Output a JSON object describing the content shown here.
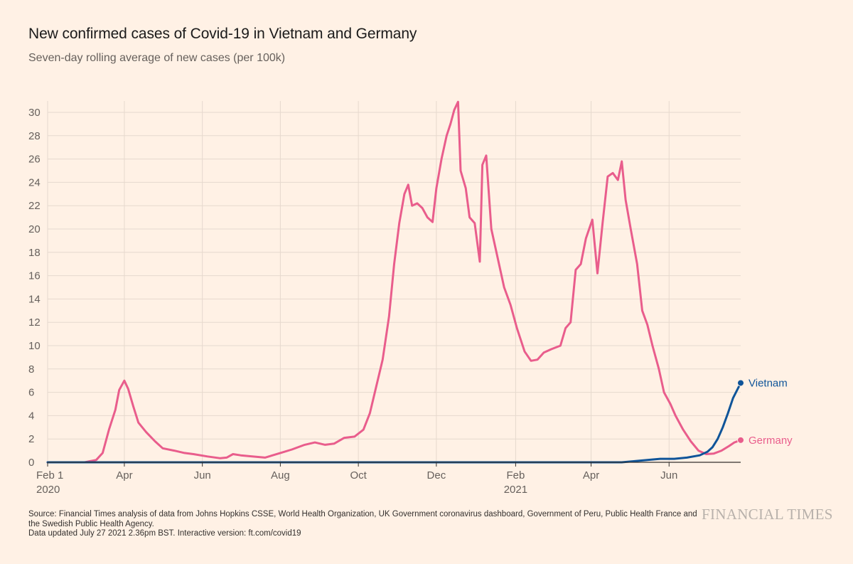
{
  "header": {
    "title": "New confirmed cases of Covid-19 in Vietnam and Germany",
    "subtitle": "Seven-day rolling average of new cases (per 100k)"
  },
  "footer": {
    "source": "Source: Financial Times analysis of data from Johns Hopkins CSSE, World Health Organization, UK Government coronavirus dashboard, Government of Peru, Public Health France and the Swedish Public Health Agency.",
    "updated": "Data updated July 27 2021 2.36pm BST. Interactive version: ft.com/covid19",
    "logo": "FINANCIAL TIMES"
  },
  "colors": {
    "background": "#fff1e5",
    "grid": "#e6d9ce",
    "germany": "#e95d8c",
    "vietnam": "#0f5499"
  },
  "chart_data": {
    "type": "line",
    "title": "New confirmed cases of Covid-19 in Vietnam and Germany",
    "subtitle": "Seven-day rolling average of new cases (per 100k)",
    "ylim": [
      0,
      30
    ],
    "yticks": [
      0,
      2,
      4,
      6,
      8,
      10,
      12,
      14,
      16,
      18,
      20,
      22,
      24,
      26,
      28,
      30
    ],
    "xlim": [
      "2020-02-01",
      "2021-07-27"
    ],
    "xticks": [
      {
        "date": "2020-02-01",
        "label": "Feb 1",
        "sublabel": "2020"
      },
      {
        "date": "2020-04-01",
        "label": "Apr",
        "sublabel": ""
      },
      {
        "date": "2020-06-01",
        "label": "Jun",
        "sublabel": ""
      },
      {
        "date": "2020-08-01",
        "label": "Aug",
        "sublabel": ""
      },
      {
        "date": "2020-10-01",
        "label": "Oct",
        "sublabel": ""
      },
      {
        "date": "2020-12-01",
        "label": "Dec",
        "sublabel": ""
      },
      {
        "date": "2021-02-01",
        "label": "Feb",
        "sublabel": "2021"
      },
      {
        "date": "2021-04-01",
        "label": "Apr",
        "sublabel": ""
      },
      {
        "date": "2021-06-01",
        "label": "Jun",
        "sublabel": ""
      }
    ],
    "grid": true,
    "series": [
      {
        "name": "Germany",
        "color": "#e95d8c",
        "points": [
          [
            "2020-02-01",
            0
          ],
          [
            "2020-03-01",
            0
          ],
          [
            "2020-03-10",
            0.2
          ],
          [
            "2020-03-15",
            0.8
          ],
          [
            "2020-03-20",
            2.8
          ],
          [
            "2020-03-25",
            4.5
          ],
          [
            "2020-03-28",
            6.2
          ],
          [
            "2020-04-01",
            7.0
          ],
          [
            "2020-04-04",
            6.3
          ],
          [
            "2020-04-08",
            4.8
          ],
          [
            "2020-04-12",
            3.4
          ],
          [
            "2020-04-18",
            2.6
          ],
          [
            "2020-04-25",
            1.8
          ],
          [
            "2020-05-01",
            1.2
          ],
          [
            "2020-05-10",
            1.0
          ],
          [
            "2020-05-18",
            0.8
          ],
          [
            "2020-05-25",
            0.7
          ],
          [
            "2020-06-05",
            0.5
          ],
          [
            "2020-06-15",
            0.35
          ],
          [
            "2020-06-20",
            0.4
          ],
          [
            "2020-06-25",
            0.7
          ],
          [
            "2020-07-01",
            0.6
          ],
          [
            "2020-07-10",
            0.5
          ],
          [
            "2020-07-20",
            0.4
          ],
          [
            "2020-08-01",
            0.8
          ],
          [
            "2020-08-10",
            1.1
          ],
          [
            "2020-08-20",
            1.5
          ],
          [
            "2020-08-28",
            1.7
          ],
          [
            "2020-09-05",
            1.5
          ],
          [
            "2020-09-12",
            1.6
          ],
          [
            "2020-09-20",
            2.1
          ],
          [
            "2020-09-28",
            2.2
          ],
          [
            "2020-10-05",
            2.8
          ],
          [
            "2020-10-10",
            4.2
          ],
          [
            "2020-10-15",
            6.5
          ],
          [
            "2020-10-20",
            8.8
          ],
          [
            "2020-10-25",
            12.5
          ],
          [
            "2020-10-29",
            17.0
          ],
          [
            "2020-11-02",
            20.5
          ],
          [
            "2020-11-06",
            23.0
          ],
          [
            "2020-11-09",
            23.8
          ],
          [
            "2020-11-12",
            22.0
          ],
          [
            "2020-11-16",
            22.2
          ],
          [
            "2020-11-20",
            21.8
          ],
          [
            "2020-11-24",
            21.0
          ],
          [
            "2020-11-28",
            20.6
          ],
          [
            "2020-12-01",
            23.5
          ],
          [
            "2020-12-05",
            26.0
          ],
          [
            "2020-12-09",
            28.0
          ],
          [
            "2020-12-12",
            29.0
          ],
          [
            "2020-12-15",
            30.2
          ],
          [
            "2020-12-18",
            30.9
          ],
          [
            "2020-12-20",
            25.0
          ],
          [
            "2020-12-24",
            23.5
          ],
          [
            "2020-12-27",
            21.0
          ],
          [
            "2020-12-31",
            20.5
          ],
          [
            "2021-01-04",
            17.2
          ],
          [
            "2021-01-06",
            25.5
          ],
          [
            "2021-01-09",
            26.3
          ],
          [
            "2021-01-13",
            20.0
          ],
          [
            "2021-01-18",
            17.5
          ],
          [
            "2021-01-23",
            15.0
          ],
          [
            "2021-01-28",
            13.5
          ],
          [
            "2021-02-02",
            11.5
          ],
          [
            "2021-02-08",
            9.5
          ],
          [
            "2021-02-13",
            8.7
          ],
          [
            "2021-02-18",
            8.8
          ],
          [
            "2021-02-23",
            9.4
          ],
          [
            "2021-03-01",
            9.7
          ],
          [
            "2021-03-08",
            10.0
          ],
          [
            "2021-03-12",
            11.5
          ],
          [
            "2021-03-16",
            12.0
          ],
          [
            "2021-03-20",
            16.5
          ],
          [
            "2021-03-24",
            17.0
          ],
          [
            "2021-03-28",
            19.2
          ],
          [
            "2021-04-02",
            20.8
          ],
          [
            "2021-04-06",
            16.2
          ],
          [
            "2021-04-10",
            20.5
          ],
          [
            "2021-04-14",
            24.5
          ],
          [
            "2021-04-18",
            24.8
          ],
          [
            "2021-04-22",
            24.2
          ],
          [
            "2021-04-25",
            25.8
          ],
          [
            "2021-04-28",
            22.5
          ],
          [
            "2021-05-02",
            20.0
          ],
          [
            "2021-05-07",
            17.0
          ],
          [
            "2021-05-11",
            13.0
          ],
          [
            "2021-05-15",
            11.8
          ],
          [
            "2021-05-19",
            10.0
          ],
          [
            "2021-05-24",
            8.0
          ],
          [
            "2021-05-28",
            6.0
          ],
          [
            "2021-06-02",
            5.0
          ],
          [
            "2021-06-06",
            4.0
          ],
          [
            "2021-06-12",
            2.8
          ],
          [
            "2021-06-18",
            1.8
          ],
          [
            "2021-06-24",
            1.0
          ],
          [
            "2021-06-30",
            0.7
          ],
          [
            "2021-07-06",
            0.75
          ],
          [
            "2021-07-12",
            1.0
          ],
          [
            "2021-07-18",
            1.4
          ],
          [
            "2021-07-22",
            1.7
          ],
          [
            "2021-07-27",
            1.9
          ]
        ]
      },
      {
        "name": "Vietnam",
        "color": "#0f5499",
        "points": [
          [
            "2020-02-01",
            0
          ],
          [
            "2021-04-25",
            0
          ],
          [
            "2021-05-05",
            0.1
          ],
          [
            "2021-05-15",
            0.2
          ],
          [
            "2021-05-25",
            0.3
          ],
          [
            "2021-06-05",
            0.3
          ],
          [
            "2021-06-15",
            0.4
          ],
          [
            "2021-06-25",
            0.6
          ],
          [
            "2021-07-01",
            0.9
          ],
          [
            "2021-07-05",
            1.3
          ],
          [
            "2021-07-09",
            2.0
          ],
          [
            "2021-07-13",
            3.0
          ],
          [
            "2021-07-17",
            4.2
          ],
          [
            "2021-07-21",
            5.5
          ],
          [
            "2021-07-27",
            6.8
          ]
        ]
      }
    ]
  }
}
